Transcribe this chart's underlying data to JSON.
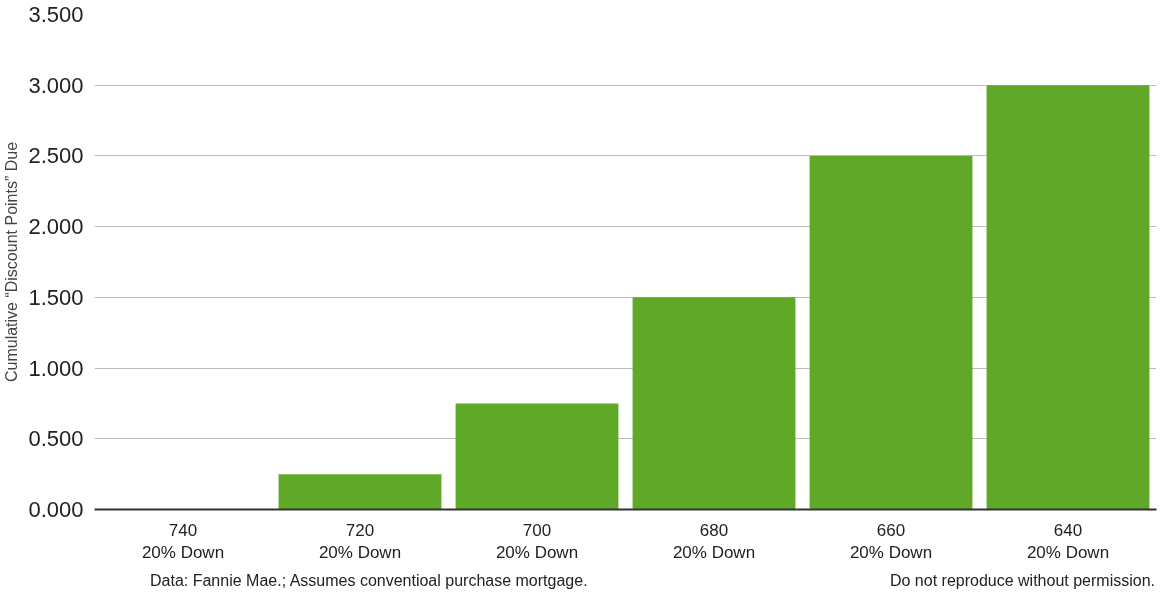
{
  "chart_data": {
    "type": "bar",
    "ylabel": "Cumulative “Discount Points” Due",
    "categories": [
      "740\n20% Down",
      "720\n20% Down",
      "700\n20% Down",
      "680\n20% Down",
      "660\n20% Down",
      "640\n20% Down"
    ],
    "values": [
      0,
      0.25,
      0.75,
      1.5,
      2.5,
      3.0
    ],
    "color": "#5fa828",
    "ylim": [
      0,
      3.5
    ],
    "yticks": [
      {
        "value": 0,
        "label": "0.000"
      },
      {
        "value": 0.5,
        "label": "0.500"
      },
      {
        "value": 1.0,
        "label": "1.000"
      },
      {
        "value": 1.5,
        "label": "1.500"
      },
      {
        "value": 2.0,
        "label": "2.000"
      },
      {
        "value": 2.5,
        "label": "2.500"
      },
      {
        "value": 3.0,
        "label": "3.000"
      },
      {
        "value": 3.5,
        "label": "3.500"
      }
    ],
    "grid": "y",
    "annotations": [
      "Data: Fannie Mae.; Assumes conventioal purchase mortgage.",
      "Do not reproduce without permission."
    ]
  }
}
